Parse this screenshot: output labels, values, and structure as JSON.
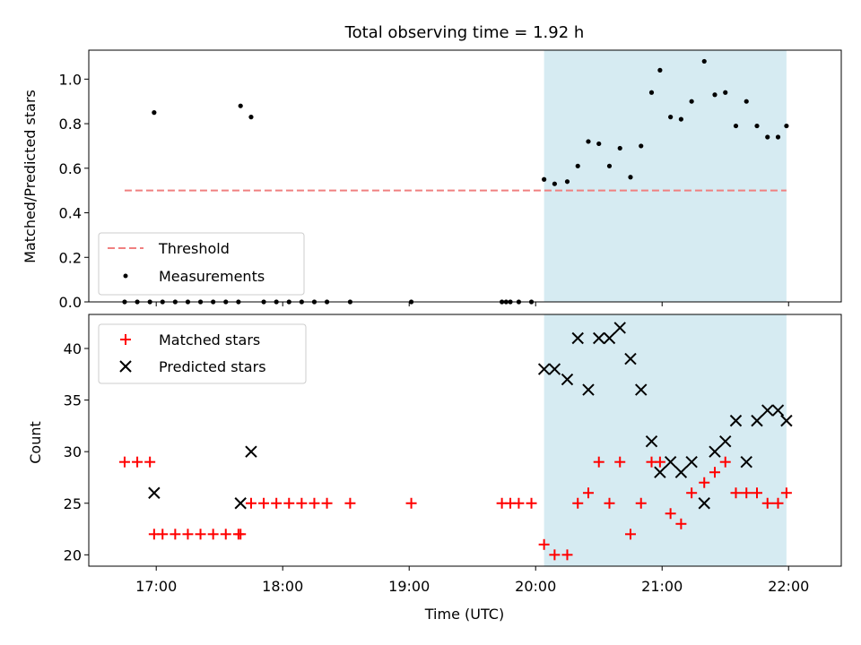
{
  "chart_data": [
    {
      "type": "scatter",
      "title": "Total observing time = 1.92 h",
      "xlabel": "",
      "ylabel": "Matched/Predicted stars",
      "xlim": [
        "16:28",
        "22:25"
      ],
      "ylim": [
        0,
        1.13
      ],
      "yticks": [
        "0.0",
        "0.2",
        "0.4",
        "0.6",
        "0.8",
        "1.0"
      ],
      "grid": false,
      "legend_position": "lower-left",
      "highlight_span": {
        "x_start": "20:04",
        "x_end": "21:59",
        "color": "#add8e6"
      },
      "threshold": {
        "name": "Threshold",
        "y": 0.5,
        "x_start": "16:45",
        "x_end": "21:59",
        "color": "#f08080",
        "style": "dashed"
      },
      "series": [
        {
          "name": "Measurements",
          "marker": "dot",
          "color": "#000000",
          "points": [
            [
              "16:45",
              0
            ],
            [
              "16:51",
              0
            ],
            [
              "16:57",
              0
            ],
            [
              "16:59",
              0.85
            ],
            [
              "17:03",
              0
            ],
            [
              "17:09",
              0
            ],
            [
              "17:15",
              0
            ],
            [
              "17:21",
              0
            ],
            [
              "17:27",
              0
            ],
            [
              "17:33",
              0
            ],
            [
              "17:39",
              0
            ],
            [
              "17:40",
              0.88
            ],
            [
              "17:45",
              0.83
            ],
            [
              "17:51",
              0
            ],
            [
              "17:57",
              0
            ],
            [
              "18:03",
              0
            ],
            [
              "18:09",
              0
            ],
            [
              "18:15",
              0
            ],
            [
              "18:21",
              0
            ],
            [
              "18:32",
              0
            ],
            [
              "19:01",
              0
            ],
            [
              "19:44",
              0
            ],
            [
              "19:46",
              0
            ],
            [
              "19:48",
              0
            ],
            [
              "19:52",
              0
            ],
            [
              "19:58",
              0
            ],
            [
              "20:04",
              0.55
            ],
            [
              "20:09",
              0.53
            ],
            [
              "20:15",
              0.54
            ],
            [
              "20:20",
              0.61
            ],
            [
              "20:25",
              0.72
            ],
            [
              "20:30",
              0.71
            ],
            [
              "20:35",
              0.61
            ],
            [
              "20:40",
              0.69
            ],
            [
              "20:45",
              0.56
            ],
            [
              "20:50",
              0.7
            ],
            [
              "20:55",
              0.94
            ],
            [
              "20:59",
              1.04
            ],
            [
              "21:04",
              0.83
            ],
            [
              "21:09",
              0.82
            ],
            [
              "21:14",
              0.9
            ],
            [
              "21:20",
              1.08
            ],
            [
              "21:25",
              0.93
            ],
            [
              "21:30",
              0.94
            ],
            [
              "21:35",
              0.79
            ],
            [
              "21:40",
              0.9
            ],
            [
              "21:45",
              0.79
            ],
            [
              "21:50",
              0.74
            ],
            [
              "21:55",
              0.74
            ],
            [
              "21:59",
              0.79
            ]
          ]
        }
      ]
    },
    {
      "type": "scatter",
      "title": "",
      "xlabel": "Time (UTC)",
      "ylabel": "Count",
      "xlim": [
        "16:28",
        "22:25"
      ],
      "ylim": [
        18.9,
        43.3
      ],
      "xticks": [
        "17:00",
        "18:00",
        "19:00",
        "20:00",
        "21:00",
        "22:00"
      ],
      "yticks": [
        "20",
        "25",
        "30",
        "35",
        "40"
      ],
      "grid": false,
      "legend_position": "upper-left",
      "highlight_span": {
        "x_start": "20:04",
        "x_end": "21:59",
        "color": "#add8e6"
      },
      "series": [
        {
          "name": "Matched stars",
          "marker": "plus",
          "color": "#ff0000",
          "points": [
            [
              "16:45",
              29
            ],
            [
              "16:51",
              29
            ],
            [
              "16:57",
              29
            ],
            [
              "16:59",
              22
            ],
            [
              "17:03",
              22
            ],
            [
              "17:09",
              22
            ],
            [
              "17:15",
              22
            ],
            [
              "17:21",
              22
            ],
            [
              "17:27",
              22
            ],
            [
              "17:33",
              22
            ],
            [
              "17:39",
              22
            ],
            [
              "17:40",
              22
            ],
            [
              "17:45",
              25
            ],
            [
              "17:51",
              25
            ],
            [
              "17:57",
              25
            ],
            [
              "18:03",
              25
            ],
            [
              "18:09",
              25
            ],
            [
              "18:15",
              25
            ],
            [
              "18:21",
              25
            ],
            [
              "18:32",
              25
            ],
            [
              "19:01",
              25
            ],
            [
              "19:44",
              25
            ],
            [
              "19:48",
              25
            ],
            [
              "19:52",
              25
            ],
            [
              "19:58",
              25
            ],
            [
              "20:04",
              21
            ],
            [
              "20:09",
              20
            ],
            [
              "20:15",
              20
            ],
            [
              "20:20",
              25
            ],
            [
              "20:25",
              26
            ],
            [
              "20:30",
              29
            ],
            [
              "20:35",
              25
            ],
            [
              "20:40",
              29
            ],
            [
              "20:45",
              22
            ],
            [
              "20:50",
              25
            ],
            [
              "20:55",
              29
            ],
            [
              "20:59",
              29
            ],
            [
              "21:04",
              24
            ],
            [
              "21:09",
              23
            ],
            [
              "21:14",
              26
            ],
            [
              "21:20",
              27
            ],
            [
              "21:25",
              28
            ],
            [
              "21:30",
              29
            ],
            [
              "21:35",
              26
            ],
            [
              "21:40",
              26
            ],
            [
              "21:45",
              26
            ],
            [
              "21:50",
              25
            ],
            [
              "21:55",
              25
            ],
            [
              "21:59",
              26
            ]
          ]
        },
        {
          "name": "Predicted stars",
          "marker": "x",
          "color": "#000000",
          "points": [
            [
              "16:59",
              26
            ],
            [
              "17:40",
              25
            ],
            [
              "17:45",
              30
            ],
            [
              "20:04",
              38
            ],
            [
              "20:09",
              38
            ],
            [
              "20:15",
              37
            ],
            [
              "20:20",
              41
            ],
            [
              "20:25",
              36
            ],
            [
              "20:30",
              41
            ],
            [
              "20:35",
              41
            ],
            [
              "20:40",
              42
            ],
            [
              "20:45",
              39
            ],
            [
              "20:50",
              36
            ],
            [
              "20:55",
              31
            ],
            [
              "20:59",
              28
            ],
            [
              "21:04",
              29
            ],
            [
              "21:09",
              28
            ],
            [
              "21:14",
              29
            ],
            [
              "21:20",
              25
            ],
            [
              "21:25",
              30
            ],
            [
              "21:30",
              31
            ],
            [
              "21:35",
              33
            ],
            [
              "21:40",
              29
            ],
            [
              "21:45",
              33
            ],
            [
              "21:50",
              34
            ],
            [
              "21:55",
              34
            ],
            [
              "21:59",
              33
            ]
          ]
        }
      ]
    }
  ]
}
